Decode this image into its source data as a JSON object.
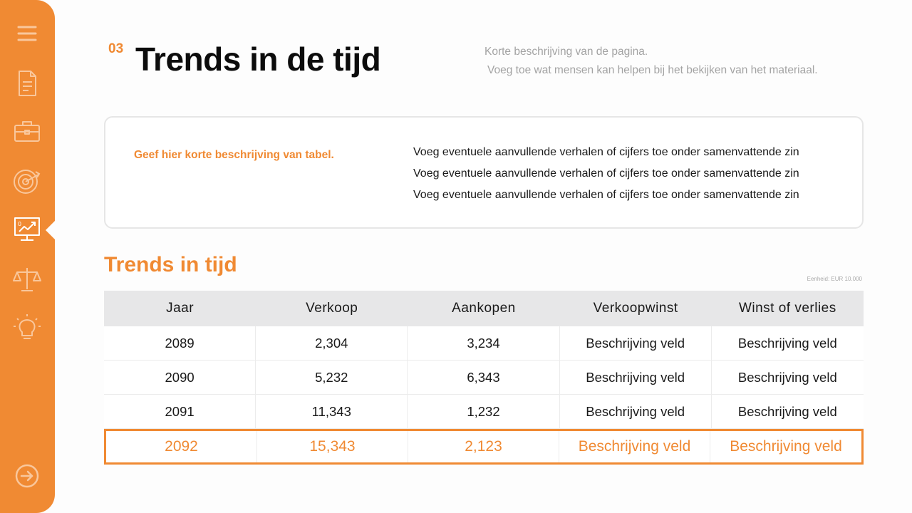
{
  "sidebar": {
    "icons": [
      "menu-icon",
      "document-icon",
      "briefcase-icon",
      "target-icon",
      "chart-monitor-icon",
      "scale-icon",
      "lightbulb-icon",
      "arrow-right-circle-icon"
    ],
    "active": "chart-monitor-icon",
    "color": "#f08a33"
  },
  "header": {
    "section_number": "03",
    "title": "Trends in de tijd",
    "description_line1": "Korte beschrijving van de pagina.",
    "description_line2": "Voeg toe wat mensen kan helpen bij het bekijken van het materiaal."
  },
  "card": {
    "highlight": "Geef hier korte beschrijving van tabel.",
    "lines": [
      "Voeg eventuele aanvullende verhalen of cijfers toe onder samenvattende zin",
      "Voeg eventuele aanvullende verhalen of cijfers toe onder samenvattende zin",
      "Voeg eventuele aanvullende verhalen of cijfers toe onder samenvattende zin"
    ]
  },
  "table": {
    "title": "Trends in tijd",
    "unit": "Eenheid: EUR 10.000",
    "headers": [
      "Jaar",
      "Verkoop",
      "Aankopen",
      "Verkoopwinst",
      "Winst of verlies"
    ],
    "rows": [
      [
        "2089",
        "2,304",
        "3,234",
        "Beschrijving veld",
        "Beschrijving veld"
      ],
      [
        "2090",
        "5,232",
        "6,343",
        "Beschrijving veld",
        "Beschrijving veld"
      ],
      [
        "2091",
        "11,343",
        "1,232",
        "Beschrijving veld",
        "Beschrijving veld"
      ]
    ],
    "highlight_row": [
      "2092",
      "15,343",
      "2,123",
      "Beschrijving veld",
      "Beschrijving veld"
    ]
  }
}
